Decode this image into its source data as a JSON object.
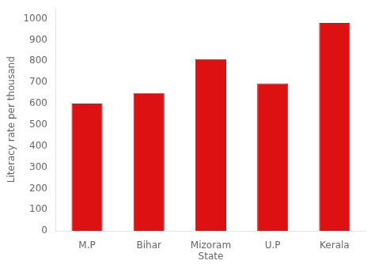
{
  "chart_data": {
    "type": "bar",
    "categories": [
      "M.P",
      "Bihar",
      "Mizoram\nState",
      "U.P",
      "Kerala"
    ],
    "values": [
      600,
      650,
      810,
      695,
      980
    ],
    "color": "#dd1111",
    "ylabel": "Literacy rate per thousand",
    "ylim": [
      0,
      1050
    ],
    "yticks": [
      0,
      100,
      200,
      300,
      400,
      500,
      600,
      700,
      800,
      900,
      1000
    ],
    "grid": false
  }
}
